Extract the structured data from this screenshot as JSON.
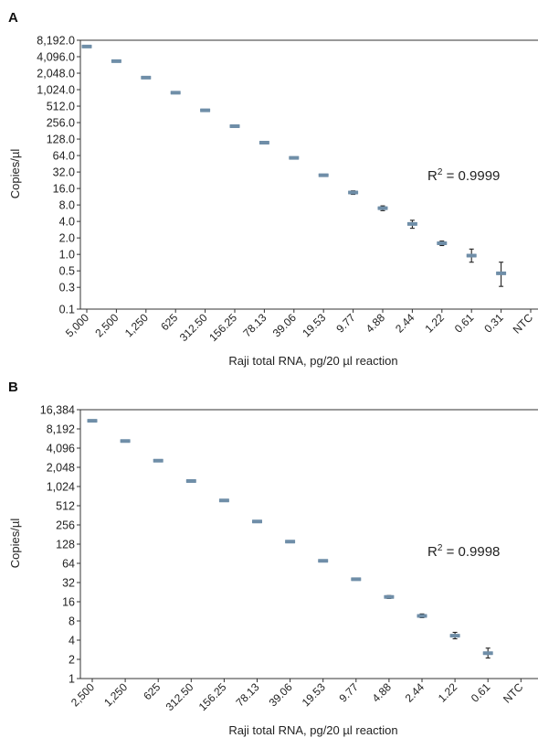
{
  "chart_data": [
    {
      "type": "scatter",
      "panel": "A",
      "title": "",
      "xlabel": "Raji total RNA, pg/20 µl reaction",
      "ylabel": "Copies/µl",
      "yscale": "log2",
      "annotation": {
        "text_prefix": "R",
        "superscript": "2",
        "text_suffix": " = 0.9999"
      },
      "categories": [
        "5,000",
        "2,500",
        "1,250",
        "625",
        "312.50",
        "156.25",
        "78.13",
        "39.06",
        "19.53",
        "9.77",
        "4.88",
        "2.44",
        "1.22",
        "0.61",
        "0.31",
        "NTC"
      ],
      "y_ticks": [
        {
          "value": 0.1,
          "label": "0.1"
        },
        {
          "value": 0.25,
          "label": "0.3"
        },
        {
          "value": 0.5,
          "label": "0.5"
        },
        {
          "value": 1,
          "label": "1.0"
        },
        {
          "value": 2,
          "label": "2.0"
        },
        {
          "value": 4,
          "label": "4.0"
        },
        {
          "value": 8,
          "label": "8.0"
        },
        {
          "value": 16,
          "label": "16.0"
        },
        {
          "value": 32,
          "label": "32.0"
        },
        {
          "value": 64,
          "label": "64.0"
        },
        {
          "value": 128,
          "label": "128.0"
        },
        {
          "value": 256,
          "label": "256.0"
        },
        {
          "value": 512,
          "label": "512.0"
        },
        {
          "value": 1024,
          "label": "1,024.0"
        },
        {
          "value": 2048,
          "label": "2,048.0"
        },
        {
          "value": 4096,
          "label": "4,096.0"
        },
        {
          "value": 8192,
          "label": "8,192.0"
        }
      ],
      "values": [
        6300,
        3400,
        1700,
        900,
        430,
        220,
        110,
        58,
        28,
        13.5,
        7,
        3.6,
        1.6,
        0.95,
        0.45,
        null
      ],
      "err_low": [
        null,
        null,
        null,
        null,
        null,
        null,
        null,
        null,
        null,
        12.5,
        6.3,
        3.0,
        1.45,
        0.72,
        0.26,
        null
      ],
      "err_high": [
        null,
        null,
        null,
        null,
        null,
        null,
        null,
        null,
        null,
        14.5,
        7.7,
        4.2,
        1.75,
        1.25,
        0.72,
        null
      ],
      "ylim": [
        0.1,
        8192
      ],
      "grid": false
    },
    {
      "type": "scatter",
      "panel": "B",
      "title": "",
      "xlabel": "Raji total RNA, pg/20 µl reaction",
      "ylabel": "Copies/µl",
      "yscale": "log2",
      "annotation": {
        "text_prefix": "R",
        "superscript": "2",
        "text_suffix": " = 0.9998"
      },
      "categories": [
        "2,500",
        "1,250",
        "625",
        "312.50",
        "156.25",
        "78.13",
        "39.06",
        "19.53",
        "9.77",
        "4.88",
        "2.44",
        "1.22",
        "0.61",
        "NTC"
      ],
      "y_ticks": [
        {
          "value": 1,
          "label": "1"
        },
        {
          "value": 2,
          "label": "2"
        },
        {
          "value": 4,
          "label": "4"
        },
        {
          "value": 8,
          "label": "8"
        },
        {
          "value": 16,
          "label": "16"
        },
        {
          "value": 32,
          "label": "32"
        },
        {
          "value": 64,
          "label": "64"
        },
        {
          "value": 128,
          "label": "128"
        },
        {
          "value": 256,
          "label": "256"
        },
        {
          "value": 512,
          "label": "512"
        },
        {
          "value": 1024,
          "label": "1,024"
        },
        {
          "value": 2048,
          "label": "2,048"
        },
        {
          "value": 4096,
          "label": "4,096"
        },
        {
          "value": 8192,
          "label": "8,192"
        },
        {
          "value": 16384,
          "label": "16,384"
        }
      ],
      "values": [
        11000,
        5300,
        2600,
        1250,
        620,
        290,
        140,
        70,
        36,
        19,
        9.6,
        4.7,
        2.5,
        null
      ],
      "err_low": [
        null,
        null,
        null,
        null,
        null,
        null,
        null,
        null,
        null,
        18,
        9,
        4.2,
        2.1,
        null
      ],
      "err_high": [
        null,
        null,
        null,
        null,
        null,
        null,
        null,
        null,
        null,
        20,
        10.3,
        5.3,
        3.0,
        null
      ],
      "ylim": [
        1,
        16384
      ],
      "grid": false
    }
  ]
}
